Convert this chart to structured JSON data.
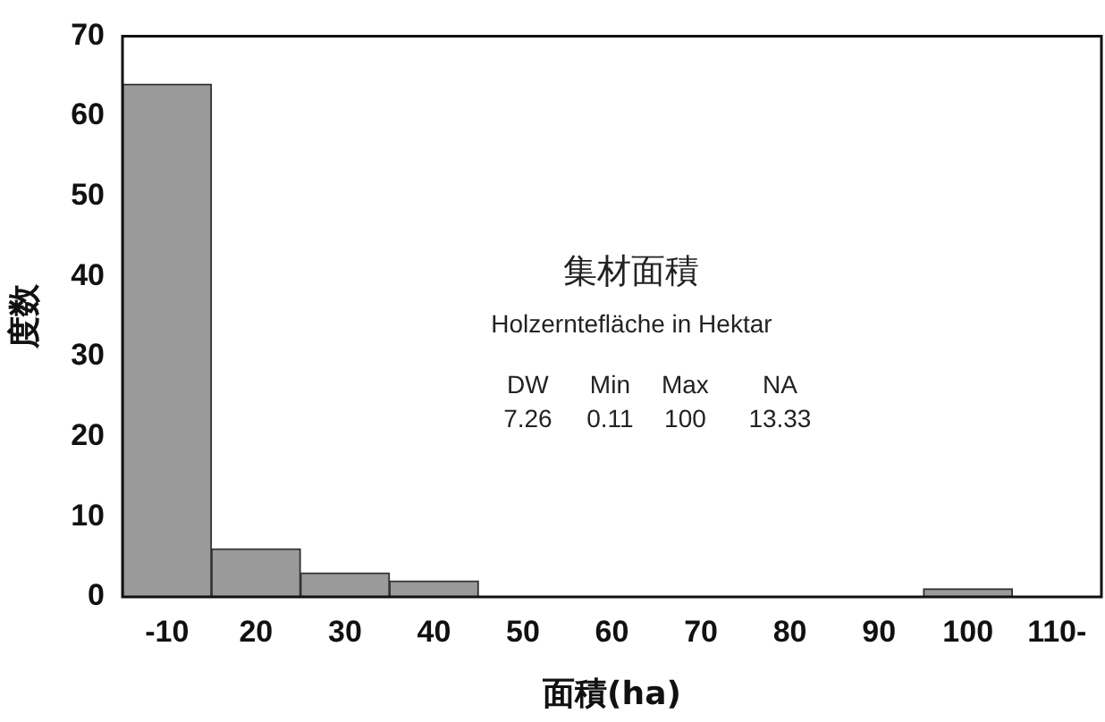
{
  "chart_data": {
    "type": "bar",
    "xlabel": "面積(ha)",
    "ylabel": "度数",
    "categories": [
      "-10",
      "20",
      "30",
      "40",
      "50",
      "60",
      "70",
      "80",
      "90",
      "100",
      "110-"
    ],
    "values": [
      64,
      6,
      3,
      2,
      0,
      0,
      0,
      0,
      0,
      1,
      0
    ],
    "color": "#9a9a9a",
    "ylim": [
      0,
      70
    ],
    "yticks": [
      0,
      10,
      20,
      30,
      40,
      50,
      60,
      70
    ],
    "grid": false,
    "legend": false,
    "annotations": [
      "集材面積",
      "Holzerntefläche in Hektar",
      "DW",
      "Min",
      "Max",
      "NA",
      "7.26",
      "0.11",
      "100",
      "13.33"
    ]
  }
}
